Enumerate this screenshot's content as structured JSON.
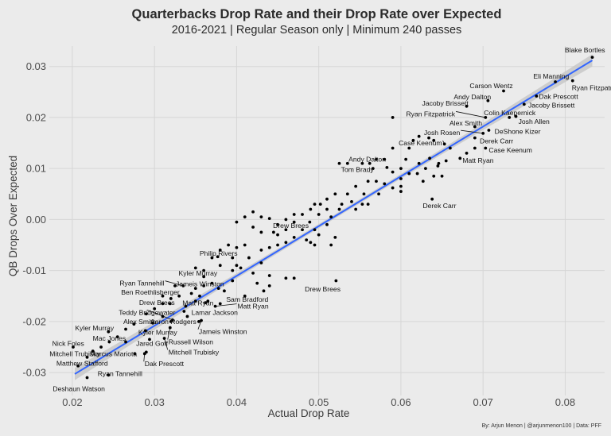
{
  "chart_data": {
    "type": "scatter",
    "title": "Quarterbacks Drop Rate and their Drop Rate over Expected",
    "subtitle": "2016-2021 | Regular Season only | Minimum 240 passes",
    "xlabel": "Actual Drop Rate",
    "ylabel": "QB Drops Over Expected",
    "caption": "By: Arjun Menon | @arjunmenon100 | Data: PFF",
    "xlim": [
      0.0172,
      0.0848
    ],
    "ylim": [
      -0.0345,
      0.034
    ],
    "x_ticks": [
      0.02,
      0.03,
      0.04,
      0.05,
      0.06,
      0.07,
      0.08
    ],
    "x_tick_labels": [
      "0.02",
      "0.03",
      "0.04",
      "0.05",
      "0.06",
      "0.07",
      "0.08"
    ],
    "y_ticks": [
      -0.03,
      -0.02,
      -0.01,
      0.0,
      0.01,
      0.02,
      0.03
    ],
    "y_tick_labels": [
      "-0.03",
      "-0.02",
      "-0.01",
      "0.00",
      "0.01",
      "0.02",
      "0.03"
    ],
    "grid": true,
    "legend": "none",
    "colors": {
      "background": "#ebebeb",
      "grid": "#d6d6d6",
      "points": "#000000",
      "fit_line": "#3366ff",
      "confidence_band": "#c8c8c8"
    },
    "fit_line": {
      "method": "linear",
      "slope": 0.976,
      "intercept": -0.0501,
      "x_range": [
        0.0203,
        0.0833
      ],
      "ci_halfwidth_ends": 0.0012,
      "ci_halfwidth_center": 0.0004
    },
    "labeled_points": [
      {
        "name": "Blake Bortles",
        "x": 0.0833,
        "y": 0.0318,
        "lx": 0.0824,
        "ly": 0.0332,
        "anchor": "middle"
      },
      {
        "name": "Eli Manning",
        "x": 0.0788,
        "y": 0.027,
        "lx": 0.0783,
        "ly": 0.0281,
        "anchor": "middle"
      },
      {
        "name": "Ryan Fitzpatrick",
        "x": 0.0809,
        "y": 0.0272,
        "lx": 0.0808,
        "ly": 0.0258,
        "anchor": "start"
      },
      {
        "name": "Carson Wentz",
        "x": 0.0725,
        "y": 0.0252,
        "lx": 0.071,
        "ly": 0.0262,
        "anchor": "middle"
      },
      {
        "name": "Dak Prescott",
        "x": 0.0765,
        "y": 0.0242,
        "lx": 0.0768,
        "ly": 0.0241,
        "anchor": "start"
      },
      {
        "name": "Andy Dalton",
        "x": 0.0706,
        "y": 0.0233,
        "lx": 0.0687,
        "ly": 0.024,
        "anchor": "middle"
      },
      {
        "name": "Jacoby Brissett",
        "x": 0.075,
        "y": 0.0226,
        "lx": 0.0755,
        "ly": 0.0224,
        "anchor": "start"
      },
      {
        "name": "Jacoby Brissett",
        "x": 0.068,
        "y": 0.0222,
        "lx": 0.0654,
        "ly": 0.0228,
        "anchor": "middle"
      },
      {
        "name": "Ryan Fitzpatrick",
        "x": 0.0703,
        "y": 0.02,
        "lx": 0.0666,
        "ly": 0.0207,
        "anchor": "end",
        "segment": true
      },
      {
        "name": "Colin Kaepernick",
        "x": 0.074,
        "y": 0.0202,
        "lx": 0.0701,
        "ly": 0.0209,
        "anchor": "start"
      },
      {
        "name": "Josh Allen",
        "x": 0.0732,
        "y": 0.02,
        "lx": 0.0743,
        "ly": 0.0192,
        "anchor": "start"
      },
      {
        "name": "Alex Smith",
        "x": 0.069,
        "y": 0.0182,
        "lx": 0.0679,
        "ly": 0.0189,
        "anchor": "middle"
      },
      {
        "name": "DeShone Kizer",
        "x": 0.0707,
        "y": 0.0175,
        "lx": 0.0714,
        "ly": 0.0173,
        "anchor": "start"
      },
      {
        "name": "Josh Rosen",
        "x": 0.07,
        "y": 0.0169,
        "lx": 0.0672,
        "ly": 0.017,
        "anchor": "end",
        "segment": true
      },
      {
        "name": "Derek Carr",
        "x": 0.069,
        "y": 0.016,
        "lx": 0.0696,
        "ly": 0.0154,
        "anchor": "start"
      },
      {
        "name": "Case Keenum",
        "x": 0.0653,
        "y": 0.0148,
        "lx": 0.065,
        "ly": 0.015,
        "anchor": "end",
        "segment": true
      },
      {
        "name": "Case Keenum",
        "x": 0.0703,
        "y": 0.014,
        "lx": 0.0707,
        "ly": 0.0136,
        "anchor": "start"
      },
      {
        "name": "Matt Ryan",
        "x": 0.0672,
        "y": 0.012,
        "lx": 0.0675,
        "ly": 0.0116,
        "anchor": "start"
      },
      {
        "name": "Andy Dalton",
        "x": 0.0562,
        "y": 0.011,
        "lx": 0.0559,
        "ly": 0.0118,
        "anchor": "middle"
      },
      {
        "name": "Tom Brady",
        "x": 0.0566,
        "y": 0.01,
        "lx": 0.0547,
        "ly": 0.0098,
        "anchor": "middle"
      },
      {
        "name": "Derek Carr",
        "x": 0.0638,
        "y": 0.004,
        "lx": 0.0647,
        "ly": 0.0027,
        "anchor": "middle"
      },
      {
        "name": "Drew Brees",
        "x": 0.0489,
        "y": -0.0005,
        "lx": 0.0466,
        "ly": -0.0012,
        "anchor": "middle"
      },
      {
        "name": "Philip Rivers",
        "x": 0.0377,
        "y": -0.0073,
        "lx": 0.0378,
        "ly": -0.0066,
        "anchor": "middle"
      },
      {
        "name": "Drew Brees",
        "x": 0.0521,
        "y": -0.012,
        "lx": 0.0483,
        "ly": -0.0136,
        "anchor": "start"
      },
      {
        "name": "Kyler Murray",
        "x": 0.036,
        "y": -0.0112,
        "lx": 0.0353,
        "ly": -0.0105,
        "anchor": "middle"
      },
      {
        "name": "Ryan Tannehill",
        "x": 0.0335,
        "y": -0.013,
        "lx": 0.0312,
        "ly": -0.0125,
        "anchor": "end",
        "segment": true
      },
      {
        "name": "Jameis Winston",
        "x": 0.0325,
        "y": -0.013,
        "lx": 0.0326,
        "ly": -0.0126,
        "anchor": "start"
      },
      {
        "name": "Ben Roethlisberger",
        "x": 0.031,
        "y": -0.015,
        "lx": 0.0295,
        "ly": -0.0143,
        "anchor": "middle"
      },
      {
        "name": "Sam Bradford",
        "x": 0.0433,
        "y": -0.014,
        "lx": 0.0413,
        "ly": -0.0157,
        "anchor": "middle"
      },
      {
        "name": "Drew Brees",
        "x": 0.0319,
        "y": -0.0165,
        "lx": 0.0303,
        "ly": -0.0163,
        "anchor": "middle"
      },
      {
        "name": "Matt Ryan",
        "x": 0.0362,
        "y": -0.0163,
        "lx": 0.0353,
        "ly": -0.0164,
        "anchor": "middle"
      },
      {
        "name": "Matt Ryan",
        "x": 0.0374,
        "y": -0.017,
        "lx": 0.0401,
        "ly": -0.017,
        "anchor": "start",
        "segment": true
      },
      {
        "name": "Teddy Bridgewater",
        "x": 0.0322,
        "y": -0.0197,
        "lx": 0.0291,
        "ly": -0.0182,
        "anchor": "middle",
        "segment": true
      },
      {
        "name": "Lamar Jackson",
        "x": 0.0336,
        "y": -0.018,
        "lx": 0.0345,
        "ly": -0.0182,
        "anchor": "start"
      },
      {
        "name": "Alex Smith",
        "x": 0.0298,
        "y": -0.0203,
        "lx": 0.0282,
        "ly": -0.02,
        "anchor": "middle"
      },
      {
        "name": "Aaron Rodgers",
        "x": 0.0354,
        "y": -0.02,
        "lx": 0.0323,
        "ly": -0.02,
        "anchor": "middle"
      },
      {
        "name": "Jameis Winston",
        "x": 0.0357,
        "y": -0.0198,
        "lx": 0.0354,
        "ly": -0.022,
        "anchor": "start",
        "segment": true
      },
      {
        "name": "Kyler Murray",
        "x": 0.0244,
        "y": -0.022,
        "lx": 0.0227,
        "ly": -0.0213,
        "anchor": "middle"
      },
      {
        "name": "Kyler Murray",
        "x": 0.0289,
        "y": -0.0218,
        "lx": 0.0304,
        "ly": -0.0221,
        "anchor": "middle"
      },
      {
        "name": "Russell Wilson",
        "x": 0.0319,
        "y": -0.0212,
        "lx": 0.0317,
        "ly": -0.024,
        "anchor": "start",
        "segment": true
      },
      {
        "name": "Mac Jones",
        "x": 0.0265,
        "y": -0.024,
        "lx": 0.0245,
        "ly": -0.0233,
        "anchor": "middle"
      },
      {
        "name": "Jared Goff",
        "x": 0.0294,
        "y": -0.0235,
        "lx": 0.0297,
        "ly": -0.0243,
        "anchor": "middle"
      },
      {
        "name": "Mitchell Trubisky",
        "x": 0.0312,
        "y": -0.0233,
        "lx": 0.0317,
        "ly": -0.026,
        "anchor": "start",
        "segment": true
      },
      {
        "name": "Nick Foles",
        "x": 0.0201,
        "y": -0.025,
        "lx": 0.0195,
        "ly": -0.0243,
        "anchor": "middle"
      },
      {
        "name": "Mitchell Trubisky",
        "x": 0.0218,
        "y": -0.027,
        "lx": 0.0203,
        "ly": -0.0263,
        "anchor": "middle"
      },
      {
        "name": "Marcus Mariota",
        "x": 0.0276,
        "y": -0.0263,
        "lx": 0.025,
        "ly": -0.0263,
        "anchor": "middle"
      },
      {
        "name": "Dak Prescott",
        "x": 0.0288,
        "y": -0.0263,
        "lx": 0.0288,
        "ly": -0.0283,
        "anchor": "start",
        "segment": true
      },
      {
        "name": "Matthew Stafford",
        "x": 0.0207,
        "y": -0.0287,
        "lx": 0.0212,
        "ly": -0.0282,
        "anchor": "middle"
      },
      {
        "name": "Ryan Tannehill",
        "x": 0.0244,
        "y": -0.0305,
        "lx": 0.0258,
        "ly": -0.0302,
        "anchor": "middle"
      },
      {
        "name": "Deshaun Watson",
        "x": 0.0218,
        "y": -0.031,
        "lx": 0.0208,
        "ly": -0.0332,
        "anchor": "middle"
      }
    ],
    "unlabeled_points": [
      [
        0.059,
        0.02
      ],
      [
        0.064,
        0.0155
      ],
      [
        0.059,
        0.014
      ],
      [
        0.061,
        0.014
      ],
      [
        0.0615,
        0.0155
      ],
      [
        0.0622,
        0.0163
      ],
      [
        0.0634,
        0.016
      ],
      [
        0.066,
        0.014
      ],
      [
        0.068,
        0.013
      ],
      [
        0.0645,
        0.0105
      ],
      [
        0.0655,
        0.0115
      ],
      [
        0.069,
        0.014
      ],
      [
        0.0635,
        0.012
      ],
      [
        0.0622,
        0.011
      ],
      [
        0.063,
        0.01
      ],
      [
        0.0646,
        0.011
      ],
      [
        0.061,
        0.009
      ],
      [
        0.062,
        0.009
      ],
      [
        0.06,
        0.008
      ],
      [
        0.058,
        0.007
      ],
      [
        0.06,
        0.0065
      ],
      [
        0.0627,
        0.0075
      ],
      [
        0.064,
        0.0085
      ],
      [
        0.065,
        0.0085
      ],
      [
        0.057,
        0.0118
      ],
      [
        0.058,
        0.0118
      ],
      [
        0.0553,
        0.011
      ],
      [
        0.0535,
        0.011
      ],
      [
        0.0525,
        0.011
      ],
      [
        0.0583,
        0.0102
      ],
      [
        0.059,
        0.0093
      ],
      [
        0.06,
        0.01
      ],
      [
        0.0606,
        0.0118
      ],
      [
        0.056,
        0.0075
      ],
      [
        0.057,
        0.0075
      ],
      [
        0.0545,
        0.0065
      ],
      [
        0.0555,
        0.005
      ],
      [
        0.0573,
        0.005
      ],
      [
        0.059,
        0.0062
      ],
      [
        0.06,
        0.0055
      ],
      [
        0.0535,
        0.005
      ],
      [
        0.052,
        0.005
      ],
      [
        0.051,
        0.004
      ],
      [
        0.054,
        0.0035
      ],
      [
        0.0553,
        0.003
      ],
      [
        0.056,
        0.003
      ],
      [
        0.0528,
        0.003
      ],
      [
        0.0545,
        0.002
      ],
      [
        0.0525,
        0.002
      ],
      [
        0.051,
        0.002
      ],
      [
        0.0515,
        0.0005
      ],
      [
        0.05,
        0.001
      ],
      [
        0.048,
        0.001
      ],
      [
        0.049,
        0.002
      ],
      [
        0.0495,
        0.003
      ],
      [
        0.0502,
        0.003
      ],
      [
        0.047,
        0.001
      ],
      [
        0.047,
        -0.0005
      ],
      [
        0.046,
        0.0
      ],
      [
        0.045,
        -0.001
      ],
      [
        0.044,
        0.0002
      ],
      [
        0.043,
        0.0005
      ],
      [
        0.042,
        0.0015
      ],
      [
        0.041,
        0.0005
      ],
      [
        0.04,
        -0.0005
      ],
      [
        0.042,
        -0.0015
      ],
      [
        0.043,
        -0.0025
      ],
      [
        0.0445,
        -0.0025
      ],
      [
        0.045,
        -0.003
      ],
      [
        0.046,
        -0.002
      ],
      [
        0.048,
        -0.002
      ],
      [
        0.0495,
        -0.002
      ],
      [
        0.051,
        -0.001
      ],
      [
        0.05,
        -0.003
      ],
      [
        0.0485,
        -0.004
      ],
      [
        0.047,
        -0.0035
      ],
      [
        0.049,
        -0.0045
      ],
      [
        0.0515,
        -0.005
      ],
      [
        0.052,
        -0.0035
      ],
      [
        0.0495,
        -0.005
      ],
      [
        0.046,
        -0.0045
      ],
      [
        0.045,
        -0.005
      ],
      [
        0.044,
        -0.0055
      ],
      [
        0.043,
        -0.006
      ],
      [
        0.041,
        -0.005
      ],
      [
        0.04,
        -0.0055
      ],
      [
        0.039,
        -0.005
      ],
      [
        0.038,
        -0.006
      ],
      [
        0.037,
        -0.0075
      ],
      [
        0.0395,
        -0.0075
      ],
      [
        0.0415,
        -0.0075
      ],
      [
        0.043,
        -0.0085
      ],
      [
        0.04,
        -0.009
      ],
      [
        0.038,
        -0.009
      ],
      [
        0.036,
        -0.01
      ],
      [
        0.035,
        -0.0095
      ],
      [
        0.0395,
        -0.01
      ],
      [
        0.0405,
        -0.0095
      ],
      [
        0.042,
        -0.0105
      ],
      [
        0.044,
        -0.011
      ],
      [
        0.046,
        -0.0115
      ],
      [
        0.047,
        -0.0115
      ],
      [
        0.0425,
        -0.0125
      ],
      [
        0.044,
        -0.013
      ],
      [
        0.0395,
        -0.012
      ],
      [
        0.037,
        -0.0125
      ],
      [
        0.036,
        -0.013
      ],
      [
        0.035,
        -0.0135
      ],
      [
        0.0385,
        -0.014
      ],
      [
        0.0378,
        -0.0135
      ],
      [
        0.0345,
        -0.0145
      ],
      [
        0.033,
        -0.015
      ],
      [
        0.032,
        -0.0155
      ],
      [
        0.035,
        -0.016
      ],
      [
        0.0338,
        -0.017
      ],
      [
        0.03,
        -0.0175
      ],
      [
        0.029,
        -0.0185
      ],
      [
        0.031,
        -0.019
      ],
      [
        0.0275,
        -0.0205
      ],
      [
        0.0265,
        -0.0215
      ],
      [
        0.0255,
        -0.023
      ],
      [
        0.0245,
        -0.024
      ],
      [
        0.0235,
        -0.025
      ],
      [
        0.0225,
        -0.0258
      ],
      [
        0.029,
        -0.026
      ],
      [
        0.032,
        -0.02
      ],
      [
        0.034,
        -0.019
      ],
      [
        0.0355,
        -0.015
      ],
      [
        0.0365,
        -0.016
      ],
      [
        0.038,
        -0.0165
      ],
      [
        0.041,
        -0.015
      ],
      [
        0.031,
        -0.0165
      ]
    ]
  }
}
